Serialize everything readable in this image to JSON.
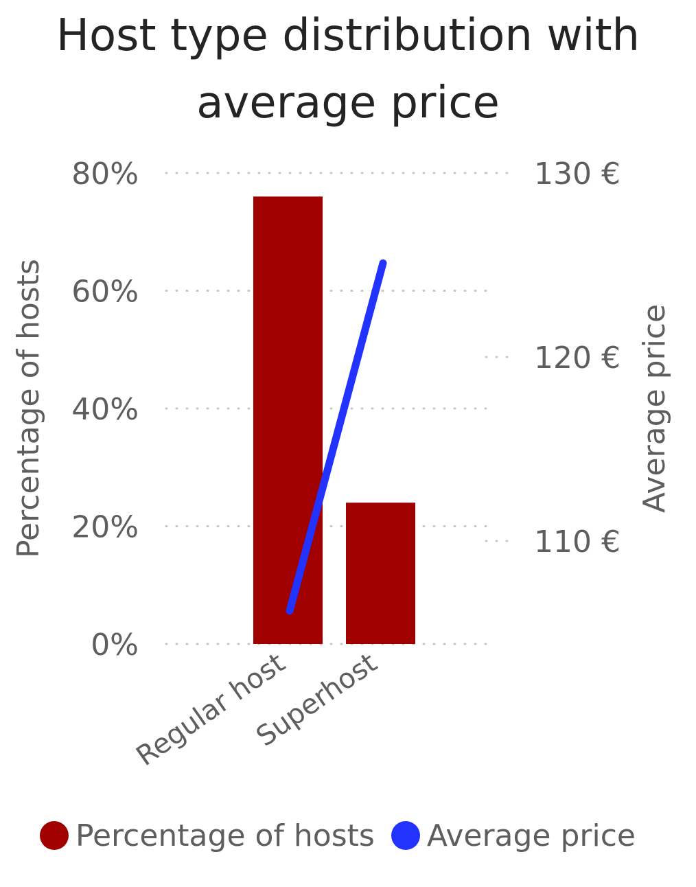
{
  "chart_data": {
    "type": "bar",
    "title": "Host type distribution with average price",
    "title_lines": [
      "Host type distribution with",
      "average price"
    ],
    "categories": [
      "Regular host",
      "Superhost"
    ],
    "series": [
      {
        "name": "Percentage of hosts",
        "kind": "bar",
        "axis": "left",
        "color": "#A00000",
        "values": [
          0.76,
          0.24
        ]
      },
      {
        "name": "Average price",
        "kind": "line",
        "axis": "right",
        "color": "#2233FF",
        "values": [
          106.2,
          125.1
        ]
      }
    ],
    "ylabel": "Percentage of hosts",
    "y2label": "Average price",
    "ylim": [
      0,
      0.8
    ],
    "y2lim": [
      104.4,
      130
    ],
    "yticks": [
      0,
      0.2,
      0.4,
      0.6,
      0.8
    ],
    "ytick_labels": [
      "0%",
      "20%",
      "40%",
      "60%",
      "80%"
    ],
    "y2ticks": [
      110,
      120,
      130
    ],
    "y2tick_labels": [
      "110 €",
      "120 €",
      "130 €"
    ],
    "grid": true,
    "legend_position": "bottom"
  }
}
